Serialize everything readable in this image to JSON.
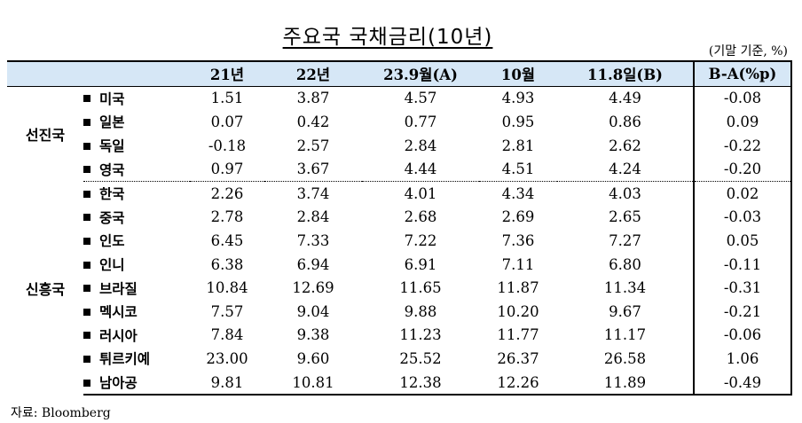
{
  "title": "주요국 국채금리(10년)",
  "unit": "(기말 기준, %)",
  "columns": [
    "21년",
    "22년",
    "23.9월(A)",
    "10월",
    "11.8일(B)",
    "B-A(%p)"
  ],
  "groups": [
    {
      "name": "선진국",
      "rows": [
        {
          "country": "미국",
          "values": [
            "1.51",
            "3.87",
            "4.57",
            "4.93",
            "4.49",
            "-0.08"
          ]
        },
        {
          "country": "일본",
          "values": [
            "0.07",
            "0.42",
            "0.77",
            "0.95",
            "0.86",
            "0.09"
          ]
        },
        {
          "country": "독일",
          "values": [
            "-0.18",
            "2.57",
            "2.84",
            "2.81",
            "2.62",
            "-0.22"
          ]
        },
        {
          "country": "영국",
          "values": [
            "0.97",
            "3.67",
            "4.44",
            "4.51",
            "4.24",
            "-0.20"
          ]
        }
      ]
    },
    {
      "name": "신흥국",
      "rows": [
        {
          "country": "한국",
          "values": [
            "2.26",
            "3.74",
            "4.01",
            "4.34",
            "4.03",
            "0.02"
          ]
        },
        {
          "country": "중국",
          "values": [
            "2.78",
            "2.84",
            "2.68",
            "2.69",
            "2.65",
            "-0.03"
          ]
        },
        {
          "country": "인도",
          "values": [
            "6.45",
            "7.33",
            "7.22",
            "7.36",
            "7.27",
            "0.05"
          ]
        },
        {
          "country": "인니",
          "values": [
            "6.38",
            "6.94",
            "6.91",
            "7.11",
            "6.80",
            "-0.11"
          ]
        },
        {
          "country": "브라질",
          "values": [
            "10.84",
            "12.69",
            "11.65",
            "11.87",
            "11.34",
            "-0.31"
          ]
        },
        {
          "country": "멕시코",
          "values": [
            "7.57",
            "9.04",
            "9.88",
            "10.20",
            "9.67",
            "-0.21"
          ]
        },
        {
          "country": "러시아",
          "values": [
            "7.84",
            "9.38",
            "11.23",
            "11.77",
            "11.17",
            "-0.06"
          ]
        },
        {
          "country": "튀르키예",
          "values": [
            "23.00",
            "9.60",
            "25.52",
            "26.37",
            "26.58",
            "1.06"
          ]
        },
        {
          "country": "남아공",
          "values": [
            "9.81",
            "10.81",
            "12.38",
            "12.26",
            "11.89",
            "-0.49"
          ]
        }
      ]
    }
  ],
  "source": "자료: Bloomberg"
}
